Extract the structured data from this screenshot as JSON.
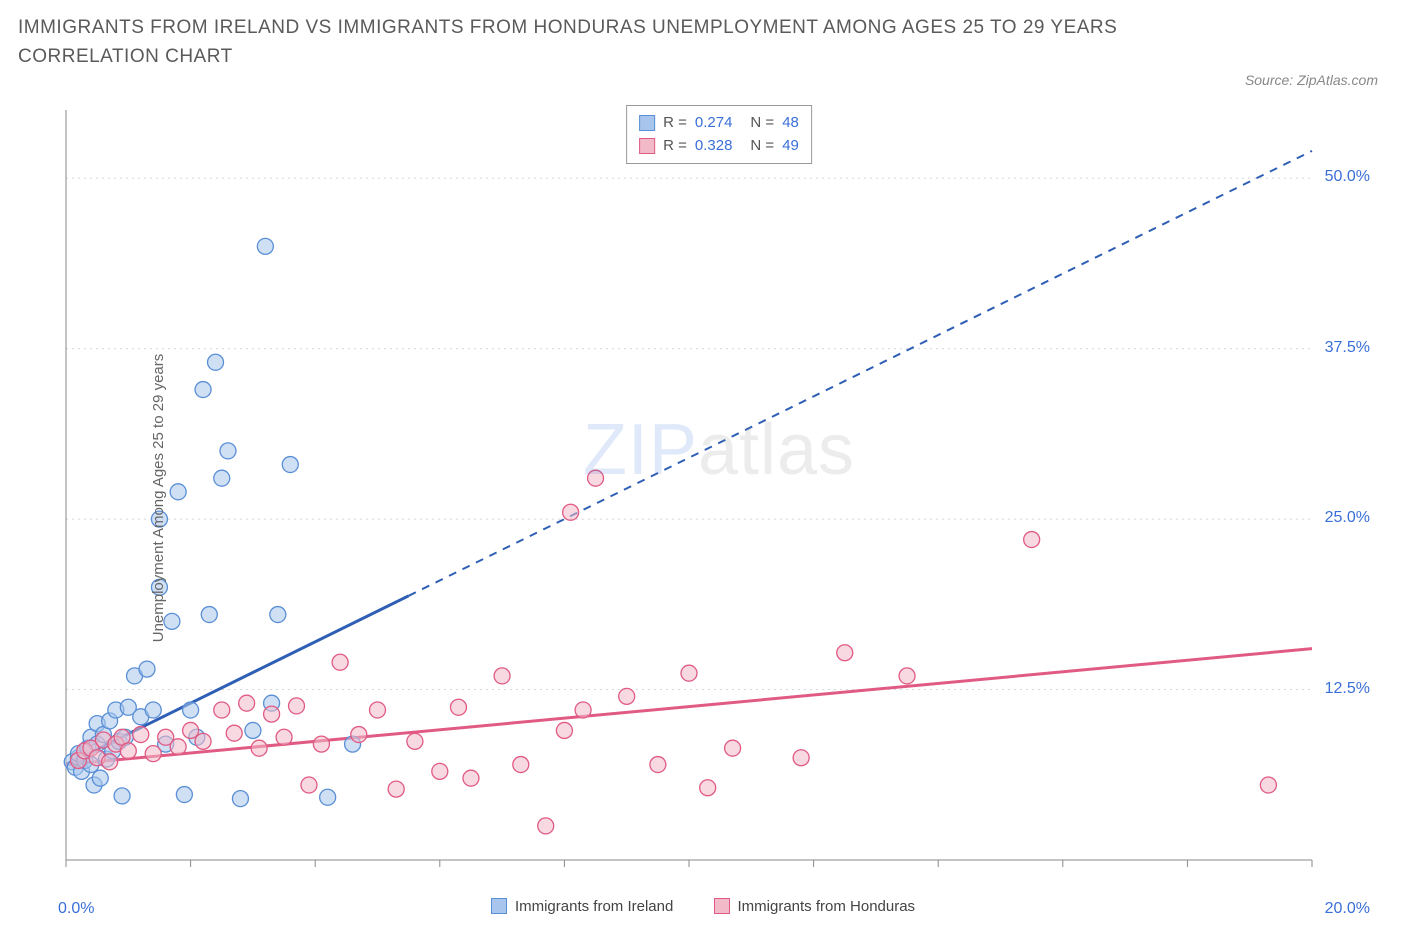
{
  "title": "IMMIGRANTS FROM IRELAND VS IMMIGRANTS FROM HONDURAS UNEMPLOYMENT AMONG AGES 25 TO 29 YEARS CORRELATION CHART",
  "source": "Source: ZipAtlas.com",
  "watermark_zip": "ZIP",
  "watermark_atlas": "atlas",
  "chart": {
    "type": "scatter",
    "ylabel": "Unemployment Among Ages 25 to 29 years",
    "xlim": [
      0,
      20
    ],
    "ylim": [
      0,
      55
    ],
    "xticks": [
      0,
      2,
      4,
      6,
      8,
      10,
      12,
      14,
      16,
      18,
      20
    ],
    "yticks": [
      12.5,
      25,
      37.5,
      50
    ],
    "xtick_label_min": "0.0%",
    "xtick_label_max": "20.0%",
    "ytick_labels": [
      "12.5%",
      "25.0%",
      "37.5%",
      "50.0%"
    ],
    "background_color": "#ffffff",
    "grid_color": "#d8d8d8",
    "axis_color": "#888888",
    "marker_radius": 8,
    "series": [
      {
        "name": "Immigrants from Ireland",
        "fill_color": "#a8c6ed",
        "stroke_color": "#5a8fd6",
        "fill_opacity": 0.55,
        "line_color": "#2e5fb5",
        "R_label": "R = ",
        "R_value": "0.274",
        "N_label": "N = ",
        "N_value": "48",
        "trend": {
          "x1": 0,
          "y1": 7,
          "x2": 20,
          "y2": 52,
          "solid_until_x": 5.5
        },
        "points": [
          [
            0.1,
            7.2
          ],
          [
            0.15,
            6.8
          ],
          [
            0.2,
            7.5
          ],
          [
            0.2,
            7.8
          ],
          [
            0.25,
            6.5
          ],
          [
            0.3,
            8
          ],
          [
            0.3,
            7.3
          ],
          [
            0.35,
            8.2
          ],
          [
            0.4,
            7
          ],
          [
            0.4,
            9
          ],
          [
            0.45,
            5.5
          ],
          [
            0.5,
            8.5
          ],
          [
            0.5,
            10
          ],
          [
            0.55,
            6
          ],
          [
            0.6,
            9.2
          ],
          [
            0.65,
            7.4
          ],
          [
            0.7,
            10.2
          ],
          [
            0.75,
            8
          ],
          [
            0.8,
            11
          ],
          [
            0.85,
            8.7
          ],
          [
            0.9,
            4.7
          ],
          [
            0.95,
            9
          ],
          [
            1.0,
            11.2
          ],
          [
            1.1,
            13.5
          ],
          [
            1.2,
            10.5
          ],
          [
            1.3,
            14
          ],
          [
            1.4,
            11
          ],
          [
            1.5,
            20
          ],
          [
            1.5,
            25
          ],
          [
            1.6,
            8.5
          ],
          [
            1.7,
            17.5
          ],
          [
            1.8,
            27
          ],
          [
            1.9,
            4.8
          ],
          [
            2.0,
            11
          ],
          [
            2.1,
            9
          ],
          [
            2.2,
            34.5
          ],
          [
            2.3,
            18
          ],
          [
            2.4,
            36.5
          ],
          [
            2.5,
            28
          ],
          [
            2.6,
            30
          ],
          [
            2.8,
            4.5
          ],
          [
            3.0,
            9.5
          ],
          [
            3.2,
            45
          ],
          [
            3.3,
            11.5
          ],
          [
            3.4,
            18
          ],
          [
            3.6,
            29
          ],
          [
            4.2,
            4.6
          ],
          [
            4.6,
            8.5
          ]
        ]
      },
      {
        "name": "Immigrants from Honduras",
        "fill_color": "#f2b9c8",
        "stroke_color": "#e05a84",
        "fill_opacity": 0.55,
        "line_color": "#e05a84",
        "R_label": "R = ",
        "R_value": "0.328",
        "N_label": "N = ",
        "N_value": "49",
        "trend": {
          "x1": 0,
          "y1": 7,
          "x2": 20,
          "y2": 15.5,
          "solid_until_x": 20
        },
        "points": [
          [
            0.2,
            7.3
          ],
          [
            0.3,
            8
          ],
          [
            0.4,
            8.2
          ],
          [
            0.5,
            7.5
          ],
          [
            0.6,
            8.8
          ],
          [
            0.7,
            7.2
          ],
          [
            0.8,
            8.5
          ],
          [
            0.9,
            9
          ],
          [
            1.0,
            8
          ],
          [
            1.2,
            9.2
          ],
          [
            1.4,
            7.8
          ],
          [
            1.6,
            9
          ],
          [
            1.8,
            8.3
          ],
          [
            2.0,
            9.5
          ],
          [
            2.2,
            8.7
          ],
          [
            2.5,
            11
          ],
          [
            2.7,
            9.3
          ],
          [
            2.9,
            11.5
          ],
          [
            3.1,
            8.2
          ],
          [
            3.3,
            10.7
          ],
          [
            3.5,
            9
          ],
          [
            3.7,
            11.3
          ],
          [
            3.9,
            5.5
          ],
          [
            4.1,
            8.5
          ],
          [
            4.4,
            14.5
          ],
          [
            4.7,
            9.2
          ],
          [
            5.0,
            11
          ],
          [
            5.3,
            5.2
          ],
          [
            5.6,
            8.7
          ],
          [
            6.0,
            6.5
          ],
          [
            6.3,
            11.2
          ],
          [
            6.5,
            6
          ],
          [
            7.0,
            13.5
          ],
          [
            7.3,
            7
          ],
          [
            7.7,
            2.5
          ],
          [
            8.0,
            9.5
          ],
          [
            8.1,
            25.5
          ],
          [
            8.3,
            11
          ],
          [
            8.5,
            28
          ],
          [
            9.0,
            12
          ],
          [
            9.5,
            7
          ],
          [
            10.0,
            13.7
          ],
          [
            10.3,
            5.3
          ],
          [
            10.7,
            8.2
          ],
          [
            11.8,
            7.5
          ],
          [
            12.5,
            15.2
          ],
          [
            13.5,
            13.5
          ],
          [
            15.5,
            23.5
          ],
          [
            19.3,
            5.5
          ]
        ]
      }
    ]
  }
}
